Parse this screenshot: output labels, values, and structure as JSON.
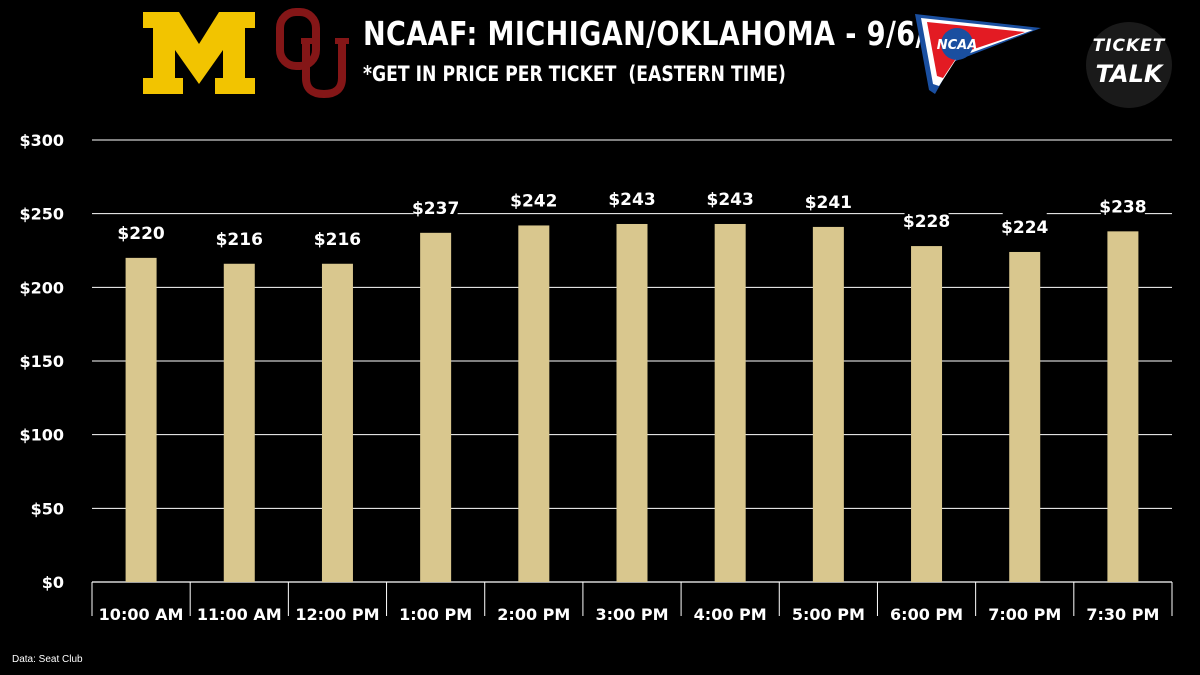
{
  "header": {
    "title": "NCAAF: MICHIGAN/OKLAHOMA - 9/6/25",
    "subtitle": "*GET IN PRICE PER TICKET  (EASTERN TIME)",
    "logo_left": "M",
    "logo_right": "OU",
    "league_logo": "NCAA",
    "badge_line1": "TICKET",
    "badge_line2": "TALK"
  },
  "colors": {
    "background": "#000000",
    "bar": "#d9c78e",
    "gridline": "#ffffff",
    "michigan_maize": "#f2c400",
    "oklahoma_crimson": "#841617",
    "ncaa_blue": "#1a4fa0",
    "ncaa_red": "#e31b23"
  },
  "chart_data": {
    "type": "bar",
    "title": "NCAAF: MICHIGAN/OKLAHOMA - 9/6/25",
    "subtitle": "*GET IN PRICE PER TICKET  (EASTERN TIME)",
    "xlabel": "",
    "ylabel": "",
    "categories": [
      "10:00 AM",
      "11:00 AM",
      "12:00 PM",
      "1:00 PM",
      "2:00 PM",
      "3:00 PM",
      "4:00 PM",
      "5:00 PM",
      "6:00 PM",
      "7:00 PM",
      "7:30 PM"
    ],
    "values": [
      220,
      216,
      216,
      237,
      242,
      243,
      243,
      241,
      228,
      224,
      238
    ],
    "data_labels": [
      "$220",
      "$216",
      "$216",
      "$237",
      "$242",
      "$243",
      "$243",
      "$241",
      "$228",
      "$224",
      "$238"
    ],
    "ylim": [
      0,
      300
    ],
    "yticks": [
      0,
      50,
      100,
      150,
      200,
      250,
      300
    ],
    "ytick_labels": [
      "$0",
      "$50",
      "$100",
      "$150",
      "$200",
      "$250",
      "$300"
    ],
    "grid": true,
    "legend": "none"
  },
  "source": "Data: Seat Club"
}
